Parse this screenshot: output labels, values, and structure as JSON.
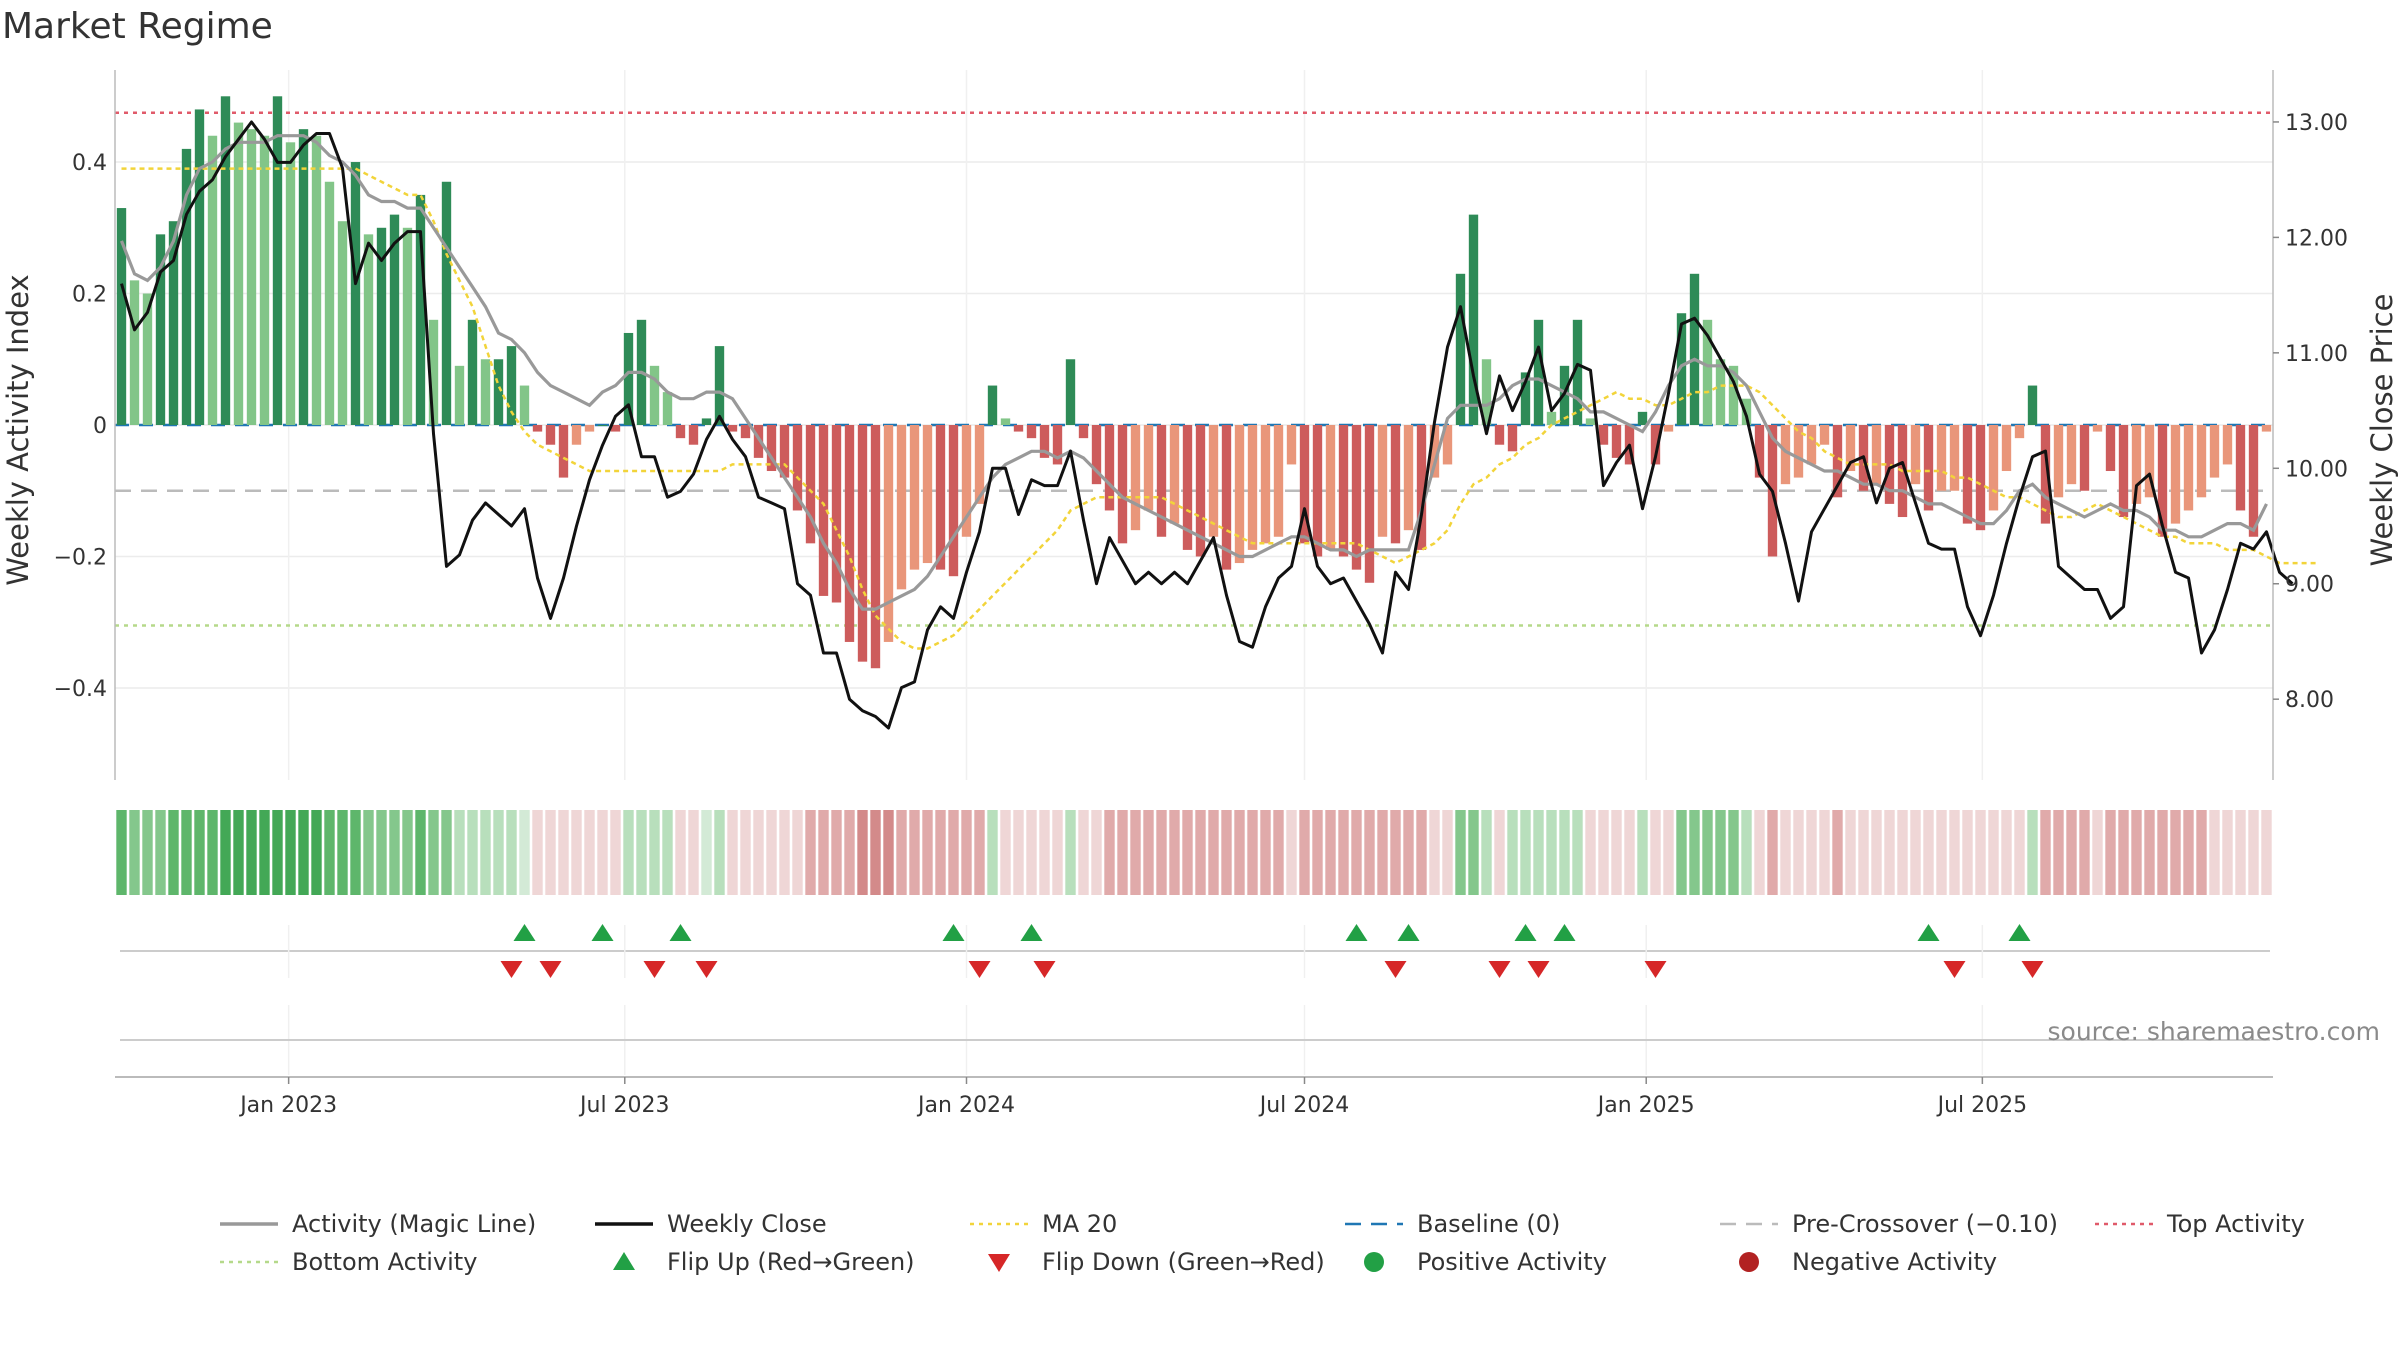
{
  "title": "Market Regime",
  "source": "source: sharemaestro.com",
  "colors": {
    "green_dark": "#2e8b57",
    "green_light": "#82c588",
    "red_dark": "#cd5c5c",
    "red_light": "#e9967a",
    "magic": "#999999",
    "close": "#111111",
    "ma": "#f2d43a",
    "baseline": "#1f77b4",
    "precross": "#bbbbbb",
    "top": "#e05a6a",
    "bottom": "#b5d98a",
    "flip_up": "#22a045",
    "flip_down": "#d62728"
  },
  "chart_data": {
    "type": "bar",
    "start_date": "2022-10-03",
    "interval_days": 7,
    "x_ticks": [
      "Jan 2023",
      "Jul 2023",
      "Jan 2024",
      "Jul 2024",
      "Jan 2025",
      "Jul 2025"
    ],
    "x_tick_dates": [
      "2023-01-01",
      "2023-07-01",
      "2024-01-01",
      "2024-07-01",
      "2025-01-01",
      "2025-07-01"
    ],
    "y_left": {
      "label": "Weekly Activity Index",
      "lim": [
        -0.54,
        0.54
      ],
      "ticks": [
        0.4,
        0.2,
        0,
        -0.2,
        -0.4
      ],
      "tick_labels": [
        "0.4",
        "0.2",
        "0",
        "−0.2",
        "−0.4"
      ]
    },
    "y_right": {
      "label": "Weekly Close Price",
      "lim": [
        7.3,
        13.45
      ],
      "ticks": [
        13,
        12,
        11,
        10,
        9,
        8
      ],
      "tick_labels": [
        "13.00",
        "12.00",
        "11.00",
        "10.00",
        "9.00",
        "8.00"
      ]
    },
    "reference_lines": {
      "baseline": 0,
      "pre_crossover": -0.1,
      "top_activity": 0.475,
      "bottom_activity": -0.305
    },
    "activity_index": [
      0.33,
      0.22,
      0.2,
      0.29,
      0.31,
      0.42,
      0.48,
      0.44,
      0.5,
      0.46,
      0.45,
      0.44,
      0.5,
      0.43,
      0.45,
      0.44,
      0.37,
      0.31,
      0.4,
      0.29,
      0.3,
      0.32,
      0.3,
      0.35,
      0.16,
      0.37,
      0.09,
      0.16,
      0.1,
      0.1,
      0.12,
      0.06,
      -0.01,
      -0.03,
      -0.08,
      -0.03,
      -0.01,
      0.0,
      -0.01,
      0.14,
      0.16,
      0.09,
      0.05,
      -0.02,
      -0.03,
      0.01,
      0.12,
      -0.01,
      -0.02,
      -0.05,
      -0.07,
      -0.08,
      -0.13,
      -0.18,
      -0.26,
      -0.27,
      -0.33,
      -0.36,
      -0.37,
      -0.33,
      -0.25,
      -0.22,
      -0.21,
      -0.22,
      -0.23,
      -0.17,
      -0.12,
      0.06,
      0.01,
      -0.01,
      -0.02,
      -0.05,
      -0.06,
      0.1,
      -0.02,
      -0.09,
      -0.13,
      -0.18,
      -0.16,
      -0.13,
      -0.17,
      -0.15,
      -0.19,
      -0.2,
      -0.17,
      -0.22,
      -0.21,
      -0.19,
      -0.18,
      -0.17,
      -0.06,
      -0.18,
      -0.2,
      -0.19,
      -0.2,
      -0.22,
      -0.24,
      -0.17,
      -0.18,
      -0.16,
      -0.19,
      -0.08,
      -0.06,
      0.23,
      0.32,
      0.1,
      -0.03,
      -0.04,
      0.08,
      0.16,
      0.02,
      0.09,
      0.16,
      0.01,
      -0.03,
      -0.05,
      -0.06,
      0.02,
      -0.06,
      -0.01,
      0.17,
      0.23,
      0.16,
      0.1,
      0.09,
      0.04,
      -0.08,
      -0.2,
      -0.09,
      -0.08,
      -0.06,
      -0.03,
      -0.11,
      -0.07,
      -0.1,
      -0.09,
      -0.12,
      -0.14,
      -0.09,
      -0.13,
      -0.1,
      -0.1,
      -0.15,
      -0.16,
      -0.13,
      -0.07,
      -0.02,
      0.06,
      -0.15,
      -0.11,
      -0.09,
      -0.1,
      -0.01,
      -0.07,
      -0.14,
      -0.12,
      -0.11,
      -0.17,
      -0.15,
      -0.13,
      -0.11,
      -0.08,
      -0.06,
      -0.13,
      -0.17,
      -0.01
    ],
    "magic_line": [
      0.28,
      0.23,
      0.22,
      0.24,
      0.28,
      0.35,
      0.39,
      0.4,
      0.42,
      0.43,
      0.43,
      0.43,
      0.44,
      0.44,
      0.44,
      0.43,
      0.41,
      0.4,
      0.38,
      0.35,
      0.34,
      0.34,
      0.33,
      0.33,
      0.3,
      0.27,
      0.24,
      0.21,
      0.18,
      0.14,
      0.13,
      0.11,
      0.08,
      0.06,
      0.05,
      0.04,
      0.03,
      0.05,
      0.06,
      0.08,
      0.08,
      0.07,
      0.05,
      0.04,
      0.04,
      0.05,
      0.05,
      0.04,
      0.01,
      -0.02,
      -0.05,
      -0.08,
      -0.11,
      -0.14,
      -0.18,
      -0.21,
      -0.25,
      -0.28,
      -0.28,
      -0.27,
      -0.26,
      -0.25,
      -0.23,
      -0.2,
      -0.17,
      -0.14,
      -0.11,
      -0.08,
      -0.06,
      -0.05,
      -0.04,
      -0.04,
      -0.05,
      -0.04,
      -0.05,
      -0.07,
      -0.09,
      -0.11,
      -0.12,
      -0.13,
      -0.14,
      -0.15,
      -0.16,
      -0.17,
      -0.18,
      -0.19,
      -0.2,
      -0.2,
      -0.19,
      -0.18,
      -0.17,
      -0.17,
      -0.18,
      -0.19,
      -0.19,
      -0.2,
      -0.19,
      -0.19,
      -0.19,
      -0.19,
      -0.13,
      -0.06,
      0.01,
      0.03,
      0.03,
      0.03,
      0.04,
      0.06,
      0.07,
      0.07,
      0.06,
      0.05,
      0.04,
      0.02,
      0.02,
      0.01,
      0.0,
      -0.01,
      0.02,
      0.06,
      0.09,
      0.1,
      0.09,
      0.09,
      0.08,
      0.06,
      0.02,
      -0.02,
      -0.04,
      -0.05,
      -0.06,
      -0.07,
      -0.07,
      -0.08,
      -0.09,
      -0.09,
      -0.1,
      -0.1,
      -0.11,
      -0.12,
      -0.12,
      -0.13,
      -0.14,
      -0.15,
      -0.15,
      -0.13,
      -0.1,
      -0.09,
      -0.11,
      -0.12,
      -0.13,
      -0.14,
      -0.13,
      -0.12,
      -0.13,
      -0.13,
      -0.14,
      -0.16,
      -0.16,
      -0.17,
      -0.17,
      -0.16,
      -0.15,
      -0.15,
      -0.16,
      -0.12
    ],
    "ma20": [
      0.39,
      0.39,
      0.39,
      0.39,
      0.39,
      0.39,
      0.39,
      0.39,
      0.39,
      0.39,
      0.39,
      0.39,
      0.39,
      0.39,
      0.39,
      0.39,
      0.39,
      0.39,
      0.39,
      0.38,
      0.37,
      0.36,
      0.35,
      0.35,
      0.31,
      0.26,
      0.22,
      0.18,
      0.12,
      0.06,
      0.02,
      -0.01,
      -0.03,
      -0.04,
      -0.05,
      -0.06,
      -0.07,
      -0.07,
      -0.07,
      -0.07,
      -0.07,
      -0.07,
      -0.07,
      -0.07,
      -0.07,
      -0.07,
      -0.07,
      -0.06,
      -0.06,
      -0.06,
      -0.06,
      -0.06,
      -0.08,
      -0.1,
      -0.12,
      -0.16,
      -0.2,
      -0.25,
      -0.29,
      -0.31,
      -0.33,
      -0.34,
      -0.34,
      -0.33,
      -0.32,
      -0.3,
      -0.28,
      -0.26,
      -0.24,
      -0.22,
      -0.2,
      -0.18,
      -0.16,
      -0.13,
      -0.12,
      -0.11,
      -0.11,
      -0.11,
      -0.11,
      -0.11,
      -0.11,
      -0.12,
      -0.13,
      -0.14,
      -0.15,
      -0.16,
      -0.17,
      -0.18,
      -0.18,
      -0.18,
      -0.18,
      -0.18,
      -0.18,
      -0.18,
      -0.18,
      -0.18,
      -0.19,
      -0.2,
      -0.21,
      -0.2,
      -0.19,
      -0.18,
      -0.16,
      -0.12,
      -0.09,
      -0.08,
      -0.06,
      -0.05,
      -0.03,
      -0.02,
      0.0,
      0.01,
      0.02,
      0.03,
      0.04,
      0.05,
      0.04,
      0.04,
      0.03,
      0.03,
      0.04,
      0.05,
      0.05,
      0.06,
      0.06,
      0.06,
      0.05,
      0.03,
      0.01,
      -0.01,
      -0.02,
      -0.04,
      -0.05,
      -0.06,
      -0.06,
      -0.06,
      -0.06,
      -0.07,
      -0.07,
      -0.07,
      -0.07,
      -0.08,
      -0.08,
      -0.09,
      -0.1,
      -0.11,
      -0.11,
      -0.12,
      -0.13,
      -0.14,
      -0.14,
      -0.13,
      -0.12,
      -0.13,
      -0.14,
      -0.15,
      -0.16,
      -0.17,
      -0.17,
      -0.18,
      -0.18,
      -0.18,
      -0.19,
      -0.19,
      -0.19,
      -0.2,
      -0.21,
      -0.21,
      -0.21,
      -0.21
    ],
    "weekly_close": [
      11.6,
      11.2,
      11.35,
      11.7,
      11.8,
      12.2,
      12.4,
      12.5,
      12.7,
      12.85,
      13.0,
      12.85,
      12.65,
      12.65,
      12.8,
      12.9,
      12.9,
      12.6,
      11.6,
      11.95,
      11.8,
      11.95,
      12.05,
      12.05,
      10.3,
      9.15,
      9.25,
      9.55,
      9.7,
      9.6,
      9.5,
      9.65,
      9.05,
      8.7,
      9.05,
      9.5,
      9.9,
      10.2,
      10.45,
      10.55,
      10.1,
      10.1,
      9.75,
      9.8,
      9.95,
      10.25,
      10.45,
      10.25,
      10.1,
      9.75,
      9.7,
      9.65,
      9.0,
      8.9,
      8.4,
      8.4,
      8.0,
      7.9,
      7.85,
      7.75,
      8.1,
      8.15,
      8.6,
      8.8,
      8.7,
      9.1,
      9.45,
      10.0,
      10.0,
      9.6,
      9.9,
      9.85,
      9.85,
      10.15,
      9.55,
      9.0,
      9.4,
      9.2,
      9.0,
      9.1,
      9.0,
      9.1,
      9.0,
      9.2,
      9.4,
      8.9,
      8.5,
      8.45,
      8.8,
      9.05,
      9.15,
      9.65,
      9.15,
      9.0,
      9.05,
      8.85,
      8.65,
      8.4,
      9.1,
      8.95,
      9.6,
      10.4,
      11.05,
      11.4,
      10.8,
      10.3,
      10.8,
      10.5,
      10.75,
      11.05,
      10.5,
      10.65,
      10.9,
      10.85,
      9.85,
      10.05,
      10.2,
      9.65,
      10.1,
      10.65,
      11.25,
      11.3,
      11.15,
      10.95,
      10.75,
      10.45,
      9.95,
      9.8,
      9.35,
      8.85,
      9.45,
      9.65,
      9.85,
      10.05,
      10.1,
      9.7,
      10.0,
      10.05,
      9.7,
      9.35,
      9.3,
      9.3,
      8.8,
      8.55,
      8.9,
      9.35,
      9.75,
      10.1,
      10.15,
      9.15,
      9.05,
      8.95,
      8.95,
      8.7,
      8.8,
      9.85,
      9.95,
      9.5,
      9.1,
      9.05,
      8.4,
      8.6,
      8.95,
      9.35,
      9.3,
      9.45,
      9.1,
      9.0
    ],
    "regime_strip": [
      3,
      2,
      2,
      2,
      3,
      3,
      3,
      3,
      4,
      4,
      4,
      4,
      4,
      4,
      4,
      4,
      3,
      3,
      3,
      2,
      2,
      2,
      2,
      3,
      2,
      2,
      1,
      1,
      1,
      1,
      1,
      0,
      -1,
      -1,
      -1,
      -1,
      -1,
      -1,
      -1,
      1,
      1,
      1,
      1,
      -1,
      -1,
      0,
      1,
      -1,
      -1,
      -1,
      -1,
      -1,
      -1,
      -2,
      -2,
      -2,
      -2,
      -3,
      -3,
      -3,
      -2,
      -2,
      -2,
      -2,
      -2,
      -2,
      -2,
      1,
      -1,
      -1,
      -1,
      -1,
      -1,
      1,
      -1,
      -1,
      -2,
      -2,
      -2,
      -2,
      -2,
      -2,
      -2,
      -2,
      -2,
      -2,
      -2,
      -2,
      -2,
      -2,
      -1,
      -2,
      -2,
      -2,
      -2,
      -2,
      -2,
      -2,
      -2,
      -2,
      -2,
      -1,
      -1,
      2,
      2,
      1,
      -1,
      1,
      1,
      1,
      1,
      1,
      1,
      -1,
      -1,
      -1,
      -1,
      1,
      -1,
      -1,
      2,
      2,
      2,
      2,
      2,
      1,
      -1,
      -2,
      -1,
      -1,
      -1,
      -1,
      -2,
      -1,
      -1,
      -1,
      -1,
      -1,
      -1,
      -1,
      -1,
      -1,
      -1,
      -1,
      -1,
      -1,
      -1,
      1,
      -2,
      -2,
      -2,
      -2,
      -1,
      -2,
      -2,
      -2,
      -2,
      -2,
      -2,
      -2,
      -2,
      -1,
      -1,
      -1,
      -1,
      -1
    ],
    "flip_up_weeks": [
      31,
      37,
      43,
      64,
      70,
      95,
      99,
      108,
      111,
      139,
      146
    ],
    "flip_down_weeks": [
      30,
      33,
      41,
      45,
      66,
      71,
      98,
      106,
      109,
      118,
      141,
      147
    ],
    "legend": [
      {
        "label": "Activity (Magic Line)",
        "marker": "line",
        "color": "#999999"
      },
      {
        "label": "Weekly Close",
        "marker": "line",
        "color": "#111111"
      },
      {
        "label": "MA 20",
        "marker": "dotted",
        "color": "#f2d43a"
      },
      {
        "label": "Baseline (0)",
        "marker": "dashed",
        "color": "#1f77b4"
      },
      {
        "label": "Pre-Crossover (−0.10)",
        "marker": "dashed",
        "color": "#bbbbbb"
      },
      {
        "label": "Top Activity",
        "marker": "dotted",
        "color": "#e05a6a"
      },
      {
        "label": "Bottom Activity",
        "marker": "dotted",
        "color": "#b5d98a"
      },
      {
        "label": "Flip Up (Red→Green)",
        "marker": "triangle-up",
        "color": "#22a045"
      },
      {
        "label": "Flip Down (Green→Red)",
        "marker": "triangle-down",
        "color": "#d62728"
      },
      {
        "label": "Positive Activity",
        "marker": "circle",
        "color": "#22a045"
      },
      {
        "label": "Negative Activity",
        "marker": "circle",
        "color": "#b22222"
      }
    ]
  }
}
